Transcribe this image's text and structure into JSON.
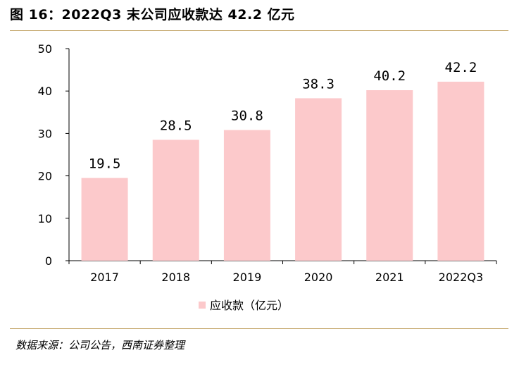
{
  "figure": {
    "title": "图 16：2022Q3 末公司应收款达 42.2 亿元",
    "source": "数据来源：公司公告，西南证券整理"
  },
  "colors": {
    "bar": "#fcc9cb",
    "axis": "#000000",
    "rule": "#c0a060"
  },
  "chart_data": {
    "type": "bar",
    "title": "",
    "xlabel": "",
    "ylabel": "",
    "categories": [
      "2017",
      "2018",
      "2019",
      "2020",
      "2021",
      "2022Q3"
    ],
    "series": [
      {
        "name": "应收款（亿元）",
        "values": [
          19.5,
          28.5,
          30.8,
          38.3,
          40.2,
          42.2
        ],
        "labels": [
          "19.5",
          "28.5",
          "30.8",
          "38.3",
          "40.2",
          "42.2"
        ]
      }
    ],
    "ylim": [
      0,
      50
    ],
    "yticks": [
      0,
      10,
      20,
      30,
      40,
      50
    ],
    "grid": false,
    "legend": "bottom-center",
    "data_labels": true
  }
}
